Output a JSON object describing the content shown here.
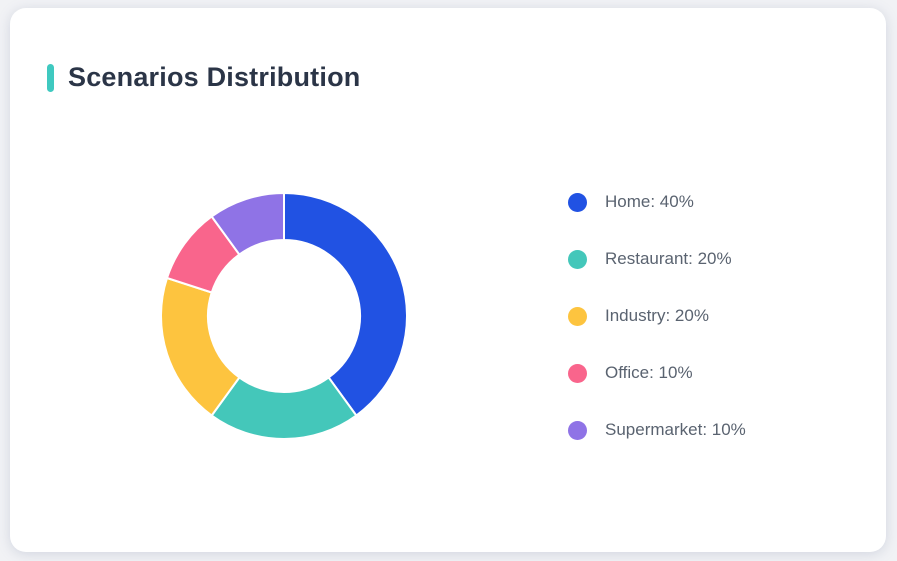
{
  "card": {
    "title": "Scenarios Distribution",
    "accent_color": "#3fc9c0"
  },
  "chart_data": {
    "type": "pie",
    "title": "Scenarios Distribution",
    "donut": true,
    "start_angle_deg_from_top": 0,
    "direction": "clockwise",
    "categories": [
      "Home",
      "Restaurant",
      "Industry",
      "Office",
      "Supermarket"
    ],
    "values": [
      40,
      20,
      20,
      10,
      10
    ],
    "unit": "%",
    "colors": [
      "#2152e3",
      "#44c7ba",
      "#fdc43f",
      "#f9658c",
      "#8f73e6"
    ],
    "legend_position": "right",
    "legend_labels": [
      "Home: 40%",
      "Restaurant: 20%",
      "Industry: 20%",
      "Office: 10%",
      "Supermarket: 10%"
    ],
    "outer_radius_px": 123,
    "inner_radius_px": 76,
    "slice_border_color": "#ffffff",
    "slice_border_width": 2
  }
}
